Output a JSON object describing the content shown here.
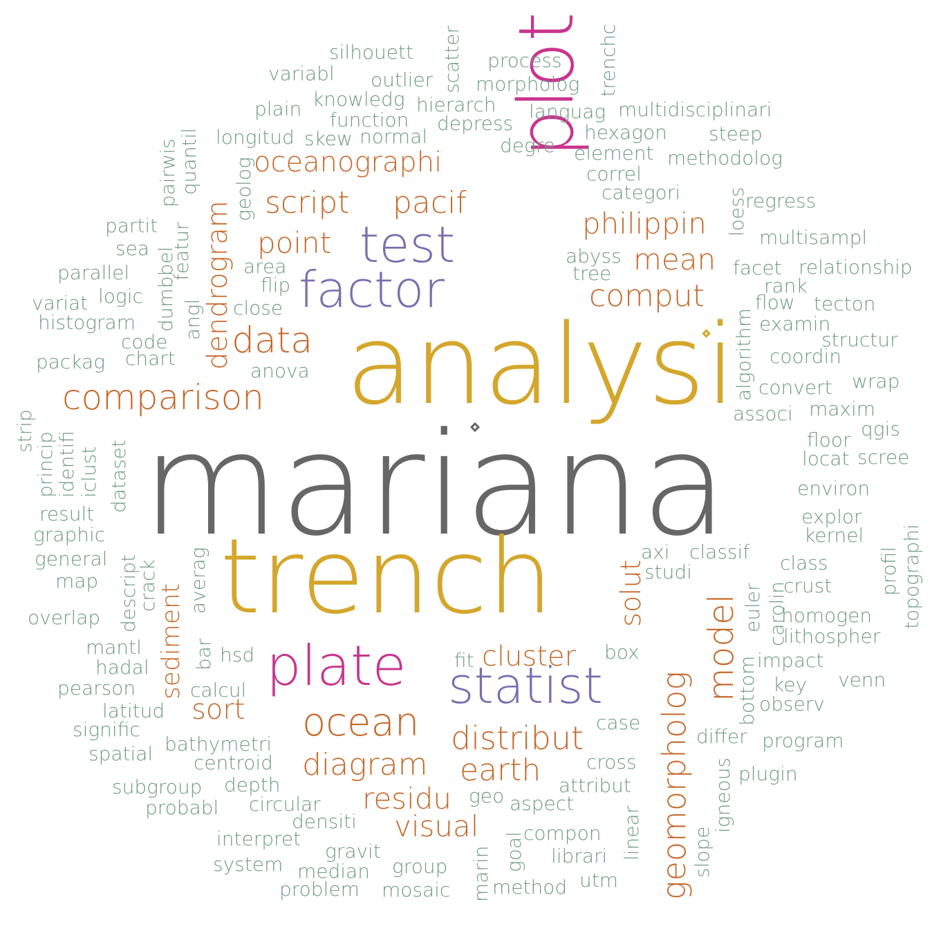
{
  "palette": {
    "gray": "#666666",
    "gold": "#d4a62b",
    "orange": "#c6692a",
    "purple": "#7b6db0",
    "magenta": "#c8358d",
    "green": "#6e9a82"
  },
  "words": [
    {
      "text": "mariana",
      "color": "gray",
      "rot": 0
    },
    {
      "text": "analysi",
      "color": "gold",
      "rot": 0
    },
    {
      "text": "trench",
      "color": "gold",
      "rot": 0
    },
    {
      "text": "plot",
      "color": "magenta",
      "rot": -90
    },
    {
      "text": "factor",
      "color": "purple",
      "rot": 0
    },
    {
      "text": "test",
      "color": "purple",
      "rot": 0
    },
    {
      "text": "statist",
      "color": "purple",
      "rot": 0
    },
    {
      "text": "plate",
      "color": "magenta",
      "rot": 0
    },
    {
      "text": "comparison",
      "color": "orange",
      "rot": 0
    },
    {
      "text": "oceanographi",
      "color": "orange",
      "rot": 0
    },
    {
      "text": "script",
      "color": "orange",
      "rot": 0
    },
    {
      "text": "pacif",
      "color": "orange",
      "rot": 0
    },
    {
      "text": "point",
      "color": "orange",
      "rot": 0
    },
    {
      "text": "data",
      "color": "orange",
      "rot": 0
    },
    {
      "text": "dendrogram",
      "color": "orange",
      "rot": -90
    },
    {
      "text": "philippin",
      "color": "orange",
      "rot": 0
    },
    {
      "text": "mean",
      "color": "orange",
      "rot": 0
    },
    {
      "text": "comput",
      "color": "orange",
      "rot": 0
    },
    {
      "text": "geomorpholog",
      "color": "orange",
      "rot": -90
    },
    {
      "text": "model",
      "color": "orange",
      "rot": -90
    },
    {
      "text": "solut",
      "color": "orange",
      "rot": -90
    },
    {
      "text": "sediment",
      "color": "orange",
      "rot": -90
    },
    {
      "text": "cluster",
      "color": "orange",
      "rot": 0
    },
    {
      "text": "ocean",
      "color": "orange",
      "rot": 0
    },
    {
      "text": "distribut",
      "color": "orange",
      "rot": 0
    },
    {
      "text": "sort",
      "color": "orange",
      "rot": 0
    },
    {
      "text": "diagram",
      "color": "orange",
      "rot": 0
    },
    {
      "text": "earth",
      "color": "orange",
      "rot": 0
    },
    {
      "text": "residu",
      "color": "orange",
      "rot": 0
    },
    {
      "text": "visual",
      "color": "orange",
      "rot": 0
    },
    {
      "text": "silhouett",
      "color": "green",
      "rot": 0
    },
    {
      "text": "scatter",
      "color": "green",
      "rot": -90
    },
    {
      "text": "trenchc",
      "color": "green",
      "rot": -90
    },
    {
      "text": "process",
      "color": "green",
      "rot": 0
    },
    {
      "text": "variabl",
      "color": "green",
      "rot": 0
    },
    {
      "text": "outlier",
      "color": "green",
      "rot": 0
    },
    {
      "text": "morpholog",
      "color": "green",
      "rot": 0
    },
    {
      "text": "knowledg",
      "color": "green",
      "rot": 0
    },
    {
      "text": "hierarch",
      "color": "green",
      "rot": 0
    },
    {
      "text": "plain",
      "color": "green",
      "rot": 0
    },
    {
      "text": "languag",
      "color": "green",
      "rot": 0
    },
    {
      "text": "multidisciplinari",
      "color": "green",
      "rot": 0
    },
    {
      "text": "function",
      "color": "green",
      "rot": 0
    },
    {
      "text": "depress",
      "color": "green",
      "rot": 0
    },
    {
      "text": "hexagon",
      "color": "green",
      "rot": 0
    },
    {
      "text": "steep",
      "color": "green",
      "rot": 0
    },
    {
      "text": "longitud",
      "color": "green",
      "rot": 0
    },
    {
      "text": "skew",
      "color": "green",
      "rot": 0
    },
    {
      "text": "normal",
      "color": "green",
      "rot": 0
    },
    {
      "text": "degre",
      "color": "green",
      "rot": 0
    },
    {
      "text": "element",
      "color": "green",
      "rot": 0
    },
    {
      "text": "methodolog",
      "color": "green",
      "rot": 0
    },
    {
      "text": "quantil",
      "color": "green",
      "rot": -90
    },
    {
      "text": "pairwis",
      "color": "green",
      "rot": -90
    },
    {
      "text": "geolog",
      "color": "green",
      "rot": -90
    },
    {
      "text": "correl",
      "color": "green",
      "rot": 0
    },
    {
      "text": "categori",
      "color": "green",
      "rot": 0
    },
    {
      "text": "loess",
      "color": "green",
      "rot": -90
    },
    {
      "text": "regress",
      "color": "green",
      "rot": 0
    },
    {
      "text": "partit",
      "color": "green",
      "rot": 0
    },
    {
      "text": "featur",
      "color": "green",
      "rot": -90
    },
    {
      "text": "multisampl",
      "color": "green",
      "rot": 0
    },
    {
      "text": "sea",
      "color": "green",
      "rot": 0
    },
    {
      "text": "dumbbel",
      "color": "green",
      "rot": -90
    },
    {
      "text": "abyss",
      "color": "green",
      "rot": 0
    },
    {
      "text": "area",
      "color": "green",
      "rot": 0
    },
    {
      "text": "facet",
      "color": "green",
      "rot": 0
    },
    {
      "text": "relationship",
      "color": "green",
      "rot": 0
    },
    {
      "text": "parallel",
      "color": "green",
      "rot": 0
    },
    {
      "text": "tree",
      "color": "green",
      "rot": 0
    },
    {
      "text": "flip",
      "color": "green",
      "rot": 0
    },
    {
      "text": "rank",
      "color": "green",
      "rot": 0
    },
    {
      "text": "logic",
      "color": "green",
      "rot": 0
    },
    {
      "text": "variat",
      "color": "green",
      "rot": 0
    },
    {
      "text": "close",
      "color": "green",
      "rot": 0
    },
    {
      "text": "algorithm",
      "color": "green",
      "rot": -90
    },
    {
      "text": "flow",
      "color": "green",
      "rot": 0
    },
    {
      "text": "tecton",
      "color": "green",
      "rot": 0
    },
    {
      "text": "angl",
      "color": "green",
      "rot": -90
    },
    {
      "text": "histogram",
      "color": "green",
      "rot": 0
    },
    {
      "text": "examin",
      "color": "green",
      "rot": 0
    },
    {
      "text": "code",
      "color": "green",
      "rot": 0
    },
    {
      "text": "structur",
      "color": "green",
      "rot": 0
    },
    {
      "text": "chart",
      "color": "green",
      "rot": 0
    },
    {
      "text": "coordin",
      "color": "green",
      "rot": 0
    },
    {
      "text": "packag",
      "color": "green",
      "rot": 0
    },
    {
      "text": "anova",
      "color": "green",
      "rot": 0
    },
    {
      "text": "convert",
      "color": "green",
      "rot": 0
    },
    {
      "text": "wrap",
      "color": "green",
      "rot": 0
    },
    {
      "text": "associ",
      "color": "green",
      "rot": 0
    },
    {
      "text": "maxim",
      "color": "green",
      "rot": 0
    },
    {
      "text": "strip",
      "color": "green",
      "rot": -90
    },
    {
      "text": "princip",
      "color": "green",
      "rot": -90
    },
    {
      "text": "identifi",
      "color": "green",
      "rot": -90
    },
    {
      "text": "iclust",
      "color": "green",
      "rot": -90
    },
    {
      "text": "dataset",
      "color": "green",
      "rot": -90
    },
    {
      "text": "floor",
      "color": "green",
      "rot": 0
    },
    {
      "text": "qgis",
      "color": "green",
      "rot": 0
    },
    {
      "text": "locat",
      "color": "green",
      "rot": 0
    },
    {
      "text": "scree",
      "color": "green",
      "rot": 0
    },
    {
      "text": "environ",
      "color": "green",
      "rot": 0
    },
    {
      "text": "result",
      "color": "green",
      "rot": 0
    },
    {
      "text": "explor",
      "color": "green",
      "rot": 0
    },
    {
      "text": "topographi",
      "color": "green",
      "rot": -90
    },
    {
      "text": "graphic",
      "color": "green",
      "rot": 0
    },
    {
      "text": "kernel",
      "color": "green",
      "rot": 0
    },
    {
      "text": "descript",
      "color": "green",
      "rot": -90
    },
    {
      "text": "crack",
      "color": "green",
      "rot": -90
    },
    {
      "text": "averag",
      "color": "green",
      "rot": -90
    },
    {
      "text": "general",
      "color": "green",
      "rot": 0
    },
    {
      "text": "axi",
      "color": "green",
      "rot": 0
    },
    {
      "text": "classif",
      "color": "green",
      "rot": 0
    },
    {
      "text": "map",
      "color": "green",
      "rot": 0
    },
    {
      "text": "studi",
      "color": "green",
      "rot": 0
    },
    {
      "text": "class",
      "color": "green",
      "rot": 0
    },
    {
      "text": "profil",
      "color": "green",
      "rot": -90
    },
    {
      "text": "carolin",
      "color": "green",
      "rot": -90
    },
    {
      "text": "crust",
      "color": "green",
      "rot": 0
    },
    {
      "text": "euler",
      "color": "green",
      "rot": -90
    },
    {
      "text": "overlap",
      "color": "green",
      "rot": 0
    },
    {
      "text": "homogen",
      "color": "green",
      "rot": 0
    },
    {
      "text": "lithospher",
      "color": "green",
      "rot": 0
    },
    {
      "text": "mantl",
      "color": "green",
      "rot": 0
    },
    {
      "text": "bottom",
      "color": "green",
      "rot": -90
    },
    {
      "text": "box",
      "color": "green",
      "rot": 0
    },
    {
      "text": "hsd",
      "color": "green",
      "rot": 0
    },
    {
      "text": "bar",
      "color": "green",
      "rot": -90
    },
    {
      "text": "hadal",
      "color": "green",
      "rot": 0
    },
    {
      "text": "fit",
      "color": "green",
      "rot": 0
    },
    {
      "text": "impact",
      "color": "green",
      "rot": 0
    },
    {
      "text": "pearson",
      "color": "green",
      "rot": 0
    },
    {
      "text": "calcul",
      "color": "green",
      "rot": 0
    },
    {
      "text": "key",
      "color": "green",
      "rot": 0
    },
    {
      "text": "venn",
      "color": "green",
      "rot": 0
    },
    {
      "text": "latitud",
      "color": "green",
      "rot": 0
    },
    {
      "text": "observ",
      "color": "green",
      "rot": 0
    },
    {
      "text": "case",
      "color": "green",
      "rot": 0
    },
    {
      "text": "signific",
      "color": "green",
      "rot": 0
    },
    {
      "text": "differ",
      "color": "green",
      "rot": 0
    },
    {
      "text": "bathymetri",
      "color": "green",
      "rot": 0
    },
    {
      "text": "program",
      "color": "green",
      "rot": 0
    },
    {
      "text": "spatial",
      "color": "green",
      "rot": 0
    },
    {
      "text": "igneous",
      "color": "green",
      "rot": -90
    },
    {
      "text": "centroid",
      "color": "green",
      "rot": 0
    },
    {
      "text": "cross",
      "color": "green",
      "rot": 0
    },
    {
      "text": "plugin",
      "color": "green",
      "rot": 0
    },
    {
      "text": "subgroup",
      "color": "green",
      "rot": 0
    },
    {
      "text": "depth",
      "color": "green",
      "rot": 0
    },
    {
      "text": "attribut",
      "color": "green",
      "rot": 0
    },
    {
      "text": "geo",
      "color": "green",
      "rot": 0
    },
    {
      "text": "probabl",
      "color": "green",
      "rot": 0
    },
    {
      "text": "circular",
      "color": "green",
      "rot": 0
    },
    {
      "text": "aspect",
      "color": "green",
      "rot": 0
    },
    {
      "text": "densiti",
      "color": "green",
      "rot": 0
    },
    {
      "text": "linear",
      "color": "green",
      "rot": -90
    },
    {
      "text": "slope",
      "color": "green",
      "rot": -90
    },
    {
      "text": "goal",
      "color": "green",
      "rot": -90
    },
    {
      "text": "compon",
      "color": "green",
      "rot": 0
    },
    {
      "text": "interpret",
      "color": "green",
      "rot": 0
    },
    {
      "text": "gravit",
      "color": "green",
      "rot": 0
    },
    {
      "text": "librari",
      "color": "green",
      "rot": 0
    },
    {
      "text": "system",
      "color": "green",
      "rot": 0
    },
    {
      "text": "median",
      "color": "green",
      "rot": 0
    },
    {
      "text": "group",
      "color": "green",
      "rot": 0
    },
    {
      "text": "marin",
      "color": "green",
      "rot": -90
    },
    {
      "text": "utm",
      "color": "green",
      "rot": 0
    },
    {
      "text": "method",
      "color": "green",
      "rot": 0
    },
    {
      "text": "problem",
      "color": "green",
      "rot": 0
    },
    {
      "text": "mosaic",
      "color": "green",
      "rot": 0
    }
  ]
}
